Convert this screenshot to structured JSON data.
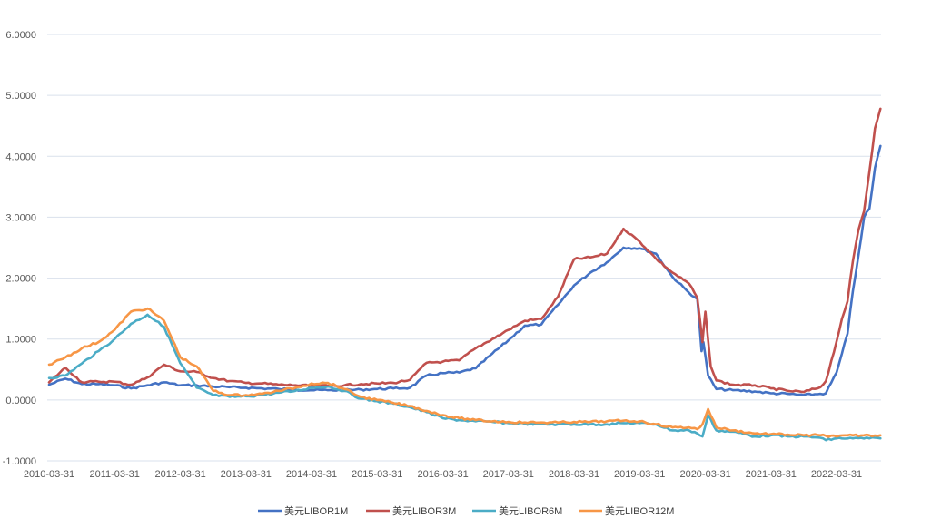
{
  "chart_data": {
    "type": "line",
    "title": "",
    "xlabel": "",
    "ylabel": "",
    "ylim": [
      -1,
      6
    ],
    "y_ticks": [
      "6.0000",
      "5.0000",
      "4.0000",
      "3.0000",
      "2.0000",
      "1.0000",
      "0.0000",
      "-1.0000"
    ],
    "x_ticks": [
      "2010-03-31",
      "2011-03-31",
      "2012-03-31",
      "2013-03-31",
      "2014-03-31",
      "2015-03-31",
      "2016-03-31",
      "2017-03-31",
      "2018-03-31",
      "2019-03-31",
      "2020-03-31",
      "2021-03-31",
      "2022-03-31"
    ],
    "x_range": [
      "2010-03-31",
      "2022-11-30"
    ],
    "grid": "horizontal",
    "legend_position": "bottom",
    "series": [
      {
        "name": "美元LIBOR1M",
        "color": "#4472c4",
        "points": [
          [
            "2010-03-31",
            0.25
          ],
          [
            "2010-06-30",
            0.35
          ],
          [
            "2010-09-30",
            0.26
          ],
          [
            "2010-12-31",
            0.26
          ],
          [
            "2011-03-31",
            0.24
          ],
          [
            "2011-06-30",
            0.19
          ],
          [
            "2011-09-30",
            0.24
          ],
          [
            "2011-12-31",
            0.29
          ],
          [
            "2012-03-31",
            0.24
          ],
          [
            "2012-06-30",
            0.24
          ],
          [
            "2012-09-30",
            0.22
          ],
          [
            "2012-12-31",
            0.21
          ],
          [
            "2013-03-31",
            0.2
          ],
          [
            "2013-06-30",
            0.19
          ],
          [
            "2013-09-30",
            0.18
          ],
          [
            "2013-12-31",
            0.17
          ],
          [
            "2014-03-31",
            0.16
          ],
          [
            "2014-06-30",
            0.16
          ],
          [
            "2014-09-30",
            0.16
          ],
          [
            "2014-12-31",
            0.17
          ],
          [
            "2015-03-31",
            0.18
          ],
          [
            "2015-06-30",
            0.19
          ],
          [
            "2015-09-30",
            0.2
          ],
          [
            "2015-12-31",
            0.4
          ],
          [
            "2016-03-31",
            0.44
          ],
          [
            "2016-06-30",
            0.45
          ],
          [
            "2016-09-30",
            0.52
          ],
          [
            "2016-12-31",
            0.76
          ],
          [
            "2017-03-31",
            0.98
          ],
          [
            "2017-06-30",
            1.22
          ],
          [
            "2017-09-30",
            1.24
          ],
          [
            "2017-12-31",
            1.56
          ],
          [
            "2018-03-31",
            1.88
          ],
          [
            "2018-06-30",
            2.09
          ],
          [
            "2018-09-30",
            2.26
          ],
          [
            "2018-12-31",
            2.5
          ],
          [
            "2019-03-31",
            2.49
          ],
          [
            "2019-06-30",
            2.4
          ],
          [
            "2019-09-30",
            2.02
          ],
          [
            "2019-12-31",
            1.76
          ],
          [
            "2020-02-15",
            1.66
          ],
          [
            "2020-03-10",
            0.8
          ],
          [
            "2020-03-20",
            0.95
          ],
          [
            "2020-04-15",
            0.4
          ],
          [
            "2020-05-31",
            0.18
          ],
          [
            "2020-08-31",
            0.16
          ],
          [
            "2020-12-31",
            0.14
          ],
          [
            "2021-03-31",
            0.11
          ],
          [
            "2021-06-30",
            0.1
          ],
          [
            "2021-09-30",
            0.08
          ],
          [
            "2021-12-31",
            0.1
          ],
          [
            "2022-01-31",
            0.11
          ],
          [
            "2022-03-31",
            0.45
          ],
          [
            "2022-04-30",
            0.76
          ],
          [
            "2022-05-31",
            1.09
          ],
          [
            "2022-06-30",
            1.79
          ],
          [
            "2022-07-31",
            2.37
          ],
          [
            "2022-08-31",
            3.0
          ],
          [
            "2022-09-30",
            3.14
          ],
          [
            "2022-10-31",
            3.81
          ],
          [
            "2022-11-30",
            4.17
          ]
        ]
      },
      {
        "name": "美元LIBOR3M",
        "color": "#c0504d",
        "points": [
          [
            "2010-03-31",
            0.29
          ],
          [
            "2010-06-30",
            0.53
          ],
          [
            "2010-09-30",
            0.29
          ],
          [
            "2010-12-31",
            0.3
          ],
          [
            "2011-03-31",
            0.3
          ],
          [
            "2011-06-30",
            0.25
          ],
          [
            "2011-09-30",
            0.37
          ],
          [
            "2011-12-31",
            0.58
          ],
          [
            "2012-03-31",
            0.47
          ],
          [
            "2012-06-30",
            0.46
          ],
          [
            "2012-09-30",
            0.36
          ],
          [
            "2012-12-31",
            0.31
          ],
          [
            "2013-03-31",
            0.28
          ],
          [
            "2013-06-30",
            0.27
          ],
          [
            "2013-09-30",
            0.25
          ],
          [
            "2013-12-31",
            0.24
          ],
          [
            "2014-03-31",
            0.23
          ],
          [
            "2014-06-30",
            0.23
          ],
          [
            "2014-09-30",
            0.24
          ],
          [
            "2014-12-31",
            0.26
          ],
          [
            "2015-03-31",
            0.27
          ],
          [
            "2015-06-30",
            0.28
          ],
          [
            "2015-09-30",
            0.33
          ],
          [
            "2015-12-31",
            0.61
          ],
          [
            "2016-03-31",
            0.63
          ],
          [
            "2016-06-30",
            0.65
          ],
          [
            "2016-09-30",
            0.85
          ],
          [
            "2016-12-31",
            1.0
          ],
          [
            "2017-03-31",
            1.15
          ],
          [
            "2017-06-30",
            1.3
          ],
          [
            "2017-09-30",
            1.33
          ],
          [
            "2017-12-31",
            1.69
          ],
          [
            "2018-03-31",
            2.31
          ],
          [
            "2018-06-30",
            2.34
          ],
          [
            "2018-09-30",
            2.4
          ],
          [
            "2018-12-31",
            2.81
          ],
          [
            "2019-03-31",
            2.6
          ],
          [
            "2019-06-30",
            2.32
          ],
          [
            "2019-09-30",
            2.09
          ],
          [
            "2019-12-31",
            1.91
          ],
          [
            "2020-02-15",
            1.68
          ],
          [
            "2020-03-15",
            0.95
          ],
          [
            "2020-03-31",
            1.45
          ],
          [
            "2020-04-30",
            0.55
          ],
          [
            "2020-05-31",
            0.32
          ],
          [
            "2020-08-31",
            0.25
          ],
          [
            "2020-12-31",
            0.24
          ],
          [
            "2021-03-31",
            0.19
          ],
          [
            "2021-06-30",
            0.15
          ],
          [
            "2021-09-30",
            0.13
          ],
          [
            "2021-12-31",
            0.21
          ],
          [
            "2022-01-31",
            0.31
          ],
          [
            "2022-03-31",
            0.96
          ],
          [
            "2022-04-30",
            1.33
          ],
          [
            "2022-05-31",
            1.62
          ],
          [
            "2022-06-30",
            2.28
          ],
          [
            "2022-07-31",
            2.79
          ],
          [
            "2022-08-31",
            3.1
          ],
          [
            "2022-09-30",
            3.75
          ],
          [
            "2022-10-31",
            4.46
          ],
          [
            "2022-11-30",
            4.78
          ]
        ]
      },
      {
        "name": "美元LIBOR6M",
        "color": "#4bacc6",
        "points": [
          [
            "2010-03-31",
            0.36
          ],
          [
            "2010-06-30",
            0.4
          ],
          [
            "2010-09-30",
            0.6
          ],
          [
            "2010-12-31",
            0.8
          ],
          [
            "2011-03-31",
            1.0
          ],
          [
            "2011-06-30",
            1.25
          ],
          [
            "2011-09-30",
            1.4
          ],
          [
            "2011-12-31",
            1.2
          ],
          [
            "2012-03-31",
            0.6
          ],
          [
            "2012-06-30",
            0.2
          ],
          [
            "2012-09-30",
            0.08
          ],
          [
            "2012-12-31",
            0.05
          ],
          [
            "2013-03-31",
            0.06
          ],
          [
            "2013-06-30",
            0.08
          ],
          [
            "2013-09-30",
            0.12
          ],
          [
            "2013-12-31",
            0.15
          ],
          [
            "2014-03-31",
            0.2
          ],
          [
            "2014-06-30",
            0.22
          ],
          [
            "2014-09-30",
            0.15
          ],
          [
            "2014-12-31",
            0.02
          ],
          [
            "2015-03-31",
            -0.02
          ],
          [
            "2015-06-30",
            -0.06
          ],
          [
            "2015-09-30",
            -0.12
          ],
          [
            "2015-12-31",
            -0.2
          ],
          [
            "2016-03-31",
            -0.3
          ],
          [
            "2016-06-30",
            -0.33
          ],
          [
            "2016-09-30",
            -0.35
          ],
          [
            "2016-12-31",
            -0.36
          ],
          [
            "2017-03-31",
            -0.38
          ],
          [
            "2017-06-30",
            -0.39
          ],
          [
            "2017-09-30",
            -0.4
          ],
          [
            "2017-12-31",
            -0.4
          ],
          [
            "2018-03-31",
            -0.4
          ],
          [
            "2018-06-30",
            -0.4
          ],
          [
            "2018-09-30",
            -0.4
          ],
          [
            "2018-12-31",
            -0.38
          ],
          [
            "2019-03-31",
            -0.38
          ],
          [
            "2019-06-30",
            -0.4
          ],
          [
            "2019-09-30",
            -0.5
          ],
          [
            "2019-12-31",
            -0.5
          ],
          [
            "2020-02-15",
            -0.55
          ],
          [
            "2020-03-15",
            -0.6
          ],
          [
            "2020-04-15",
            -0.25
          ],
          [
            "2020-05-31",
            -0.5
          ],
          [
            "2020-08-31",
            -0.52
          ],
          [
            "2020-12-31",
            -0.6
          ],
          [
            "2021-03-31",
            -0.58
          ],
          [
            "2021-06-30",
            -0.6
          ],
          [
            "2021-09-30",
            -0.6
          ],
          [
            "2021-12-31",
            -0.62
          ],
          [
            "2022-01-31",
            -0.66
          ],
          [
            "2022-03-31",
            -0.63
          ],
          [
            "2022-06-30",
            -0.63
          ],
          [
            "2022-09-30",
            -0.63
          ],
          [
            "2022-11-30",
            -0.63
          ]
        ]
      },
      {
        "name": "美元LIBOR12M",
        "color": "#f79646",
        "points": [
          [
            "2010-03-31",
            0.58
          ],
          [
            "2010-06-30",
            0.7
          ],
          [
            "2010-09-30",
            0.85
          ],
          [
            "2010-12-31",
            0.95
          ],
          [
            "2011-03-31",
            1.15
          ],
          [
            "2011-06-30",
            1.45
          ],
          [
            "2011-09-30",
            1.5
          ],
          [
            "2011-12-31",
            1.3
          ],
          [
            "2012-03-31",
            0.7
          ],
          [
            "2012-06-30",
            0.55
          ],
          [
            "2012-09-30",
            0.15
          ],
          [
            "2012-12-31",
            0.08
          ],
          [
            "2013-03-31",
            0.08
          ],
          [
            "2013-06-30",
            0.1
          ],
          [
            "2013-09-30",
            0.15
          ],
          [
            "2013-12-31",
            0.2
          ],
          [
            "2014-03-31",
            0.27
          ],
          [
            "2014-06-30",
            0.28
          ],
          [
            "2014-09-30",
            0.18
          ],
          [
            "2014-12-31",
            0.05
          ],
          [
            "2015-03-31",
            0.0
          ],
          [
            "2015-06-30",
            -0.05
          ],
          [
            "2015-09-30",
            -0.1
          ],
          [
            "2015-12-31",
            -0.18
          ],
          [
            "2016-03-31",
            -0.25
          ],
          [
            "2016-06-30",
            -0.3
          ],
          [
            "2016-09-30",
            -0.33
          ],
          [
            "2016-12-31",
            -0.35
          ],
          [
            "2017-03-31",
            -0.36
          ],
          [
            "2017-06-30",
            -0.37
          ],
          [
            "2017-09-30",
            -0.37
          ],
          [
            "2017-12-31",
            -0.37
          ],
          [
            "2018-03-31",
            -0.36
          ],
          [
            "2018-06-30",
            -0.36
          ],
          [
            "2018-09-30",
            -0.35
          ],
          [
            "2018-12-31",
            -0.34
          ],
          [
            "2019-03-31",
            -0.35
          ],
          [
            "2019-06-30",
            -0.4
          ],
          [
            "2019-09-30",
            -0.45
          ],
          [
            "2019-12-31",
            -0.45
          ],
          [
            "2020-02-15",
            -0.48
          ],
          [
            "2020-03-15",
            -0.4
          ],
          [
            "2020-04-15",
            -0.15
          ],
          [
            "2020-05-31",
            -0.45
          ],
          [
            "2020-08-31",
            -0.5
          ],
          [
            "2020-12-31",
            -0.55
          ],
          [
            "2021-03-31",
            -0.56
          ],
          [
            "2021-06-30",
            -0.57
          ],
          [
            "2021-09-30",
            -0.58
          ],
          [
            "2021-12-31",
            -0.58
          ],
          [
            "2022-03-31",
            -0.6
          ],
          [
            "2022-06-30",
            -0.58
          ],
          [
            "2022-09-30",
            -0.58
          ],
          [
            "2022-11-30",
            -0.58
          ]
        ]
      }
    ]
  }
}
